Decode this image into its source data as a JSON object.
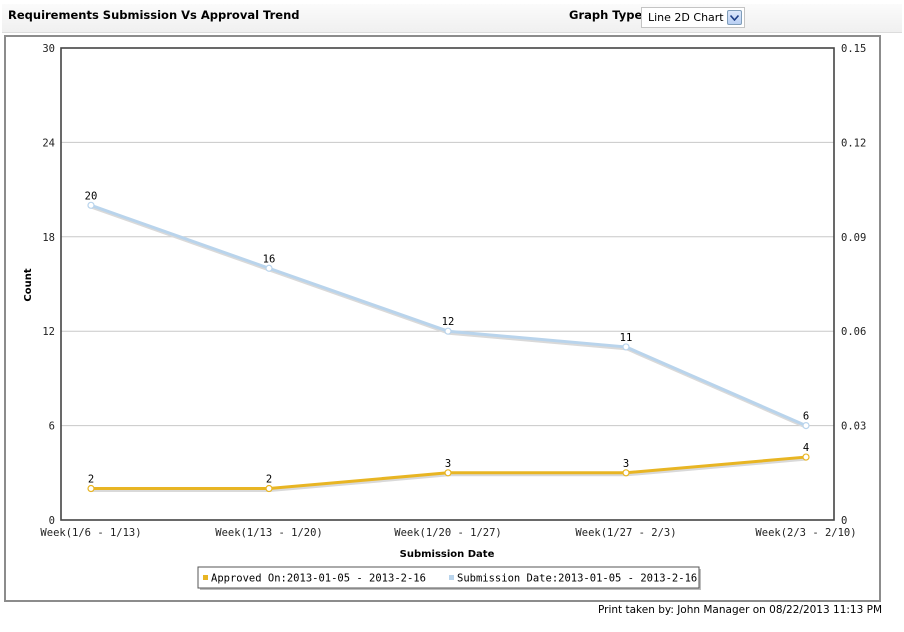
{
  "header": {
    "title": "Requirements Submission Vs Approval Trend",
    "graph_type_label": "Graph Type",
    "graph_type_value": "Line 2D Chart"
  },
  "footer": {
    "print_info": "Print taken by:  John Manager on 08/22/2013 11:13 PM"
  },
  "chart_data": {
    "type": "line",
    "title": "",
    "xlabel": "Submission Date",
    "ylabel": "Count",
    "categories": [
      "Week(1/6 - 1/13)",
      "Week(1/13 - 1/20)",
      "Week(1/20 - 1/27)",
      "Week(1/27 - 2/3)",
      "Week(2/3 - 2/10)"
    ],
    "ylim": [
      0,
      30
    ],
    "yticks": [
      "0",
      "6",
      "12",
      "18",
      "24",
      "30"
    ],
    "y2lim": [
      0,
      0.15
    ],
    "y2ticks": [
      "0",
      "0.03",
      "0.06",
      "0.09",
      "0.12",
      "0.15"
    ],
    "grid": true,
    "legend_position": "bottom",
    "series": [
      {
        "name": "Approved On:2013-01-05 - 2013-2-16",
        "values": [
          2,
          2,
          3,
          3,
          4
        ],
        "color": "#e8b523"
      },
      {
        "name": "Submission Date:2013-01-05 - 2013-2-16",
        "values": [
          20,
          16,
          12,
          11,
          6
        ],
        "color": "#b9d4ec"
      }
    ]
  }
}
